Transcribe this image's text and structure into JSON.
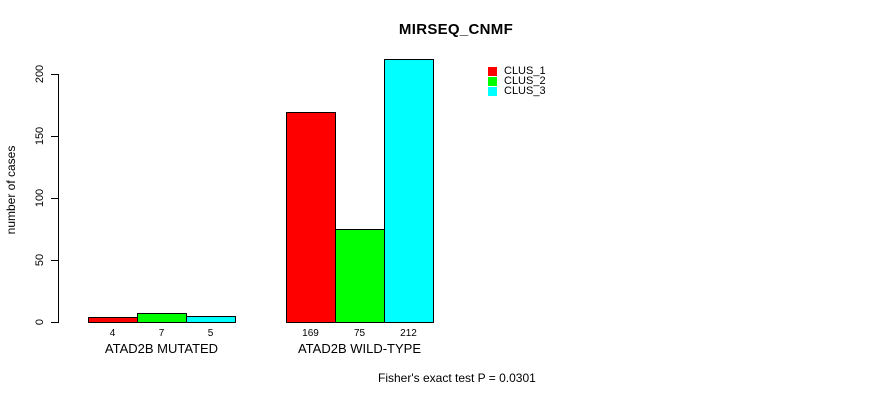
{
  "chart_data": {
    "type": "bar",
    "title": "MIRSEQ_CNMF",
    "ylabel": "number of cases",
    "xlabel": "",
    "categories": [
      "ATAD2B MUTATED",
      "ATAD2B WILD-TYPE"
    ],
    "series": [
      {
        "name": "CLUS_1",
        "color": "#ff0000",
        "values": [
          4,
          169
        ]
      },
      {
        "name": "CLUS_2",
        "color": "#00ff00",
        "values": [
          7,
          75
        ]
      },
      {
        "name": "CLUS_3",
        "color": "#00ffff",
        "values": [
          5,
          212
        ]
      }
    ],
    "yticks": [
      0,
      50,
      100,
      150,
      200
    ],
    "ylim": [
      0,
      220
    ],
    "grid": false,
    "grouped": true,
    "bar_value_labels_shown": true,
    "legend_position": "top-right-inside",
    "annotation": "Fisher's exact test P = 0.0301"
  },
  "colors": {
    "background": "#ffffff",
    "axis": "#000000",
    "text": "#000000"
  }
}
